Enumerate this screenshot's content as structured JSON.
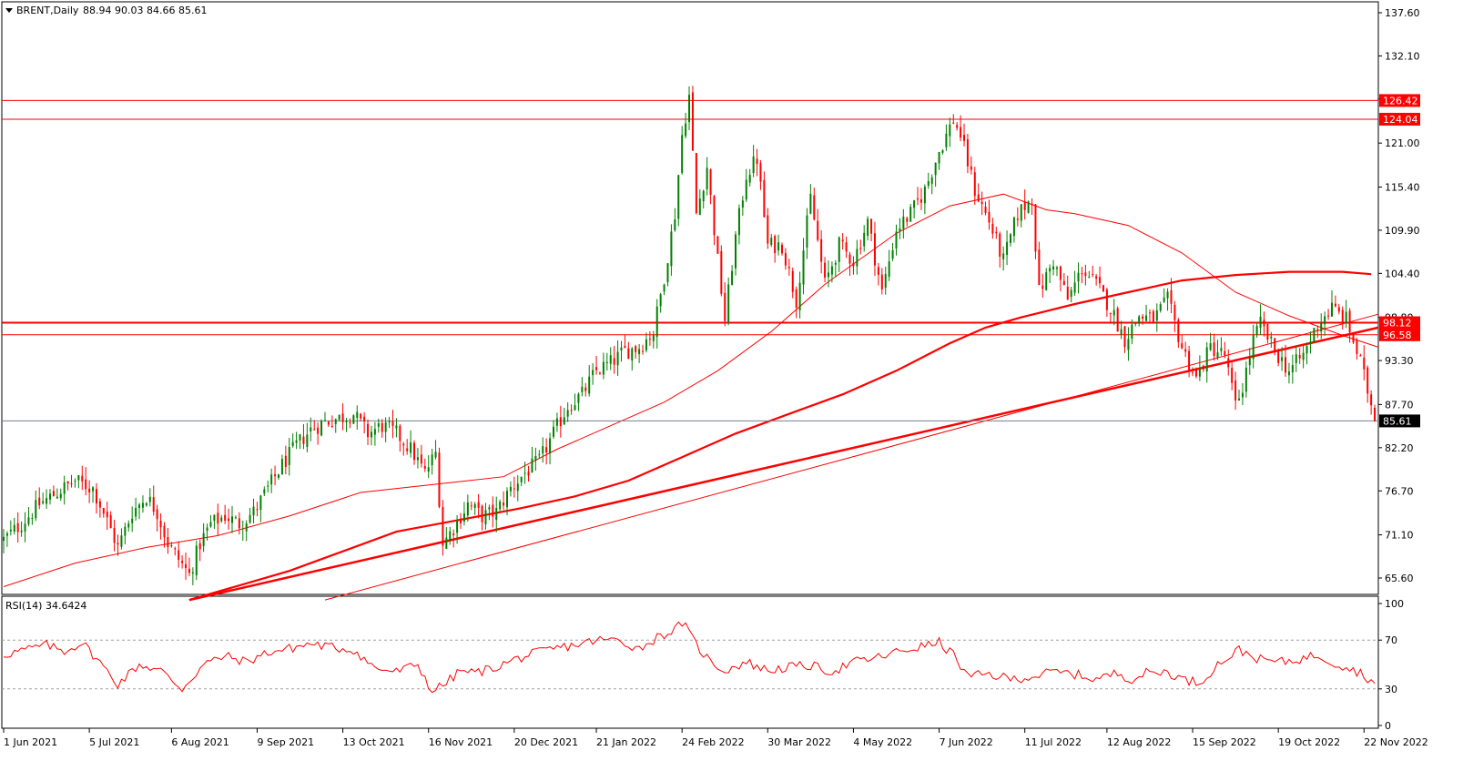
{
  "header": {
    "symbol": "BRENT,Daily",
    "ohlc": "88.94 90.03 84.66 85.61"
  },
  "rsi_header": {
    "label": "RSI(14) 34.6424"
  },
  "colors": {
    "bull": "#008000",
    "bear": "#ff0000",
    "lines": "#ff0000",
    "current_price_line": "#708090",
    "current_price_tag": "#000000",
    "rsi_line": "#ff0000"
  },
  "chart_data": {
    "type": "candlestick",
    "price_axis": {
      "ylim": [
        62.8,
        139.0
      ],
      "ticks": [
        "137.60",
        "132.10",
        "126.60",
        "121.00",
        "115.40",
        "109.90",
        "104.40",
        "98.80",
        "93.30",
        "87.70",
        "82.20",
        "76.70",
        "71.10",
        "65.60"
      ]
    },
    "rsi_axis": {
      "ylim": [
        0,
        100
      ],
      "ticks": [
        "100",
        "70",
        "30",
        "0"
      ],
      "levels": [
        70,
        30
      ]
    },
    "x_axis": {
      "labels": [
        {
          "text": "1 Jun 2021",
          "bar": 0
        },
        {
          "text": "5 Jul 2021",
          "bar": 24
        },
        {
          "text": "6 Aug 2021",
          "bar": 47
        },
        {
          "text": "9 Sep 2021",
          "bar": 71
        },
        {
          "text": "13 Oct 2021",
          "bar": 95
        },
        {
          "text": "16 Nov 2021",
          "bar": 119
        },
        {
          "text": "20 Dec 2021",
          "bar": 143
        },
        {
          "text": "21 Jan 2022",
          "bar": 166
        },
        {
          "text": "24 Feb 2022",
          "bar": 190
        },
        {
          "text": "30 Mar 2022",
          "bar": 214
        },
        {
          "text": "4 May 2022",
          "bar": 238
        },
        {
          "text": "7 Jun 2022",
          "bar": 262
        },
        {
          "text": "11 Jul 2022",
          "bar": 286
        },
        {
          "text": "12 Aug 2022",
          "bar": 309
        },
        {
          "text": "15 Sep 2022",
          "bar": 333
        },
        {
          "text": "19 Oct 2022",
          "bar": 357
        },
        {
          "text": "22 Nov 2022",
          "bar": 381
        }
      ]
    },
    "anchors": [
      [
        0,
        70.5
      ],
      [
        5,
        72.5
      ],
      [
        10,
        75
      ],
      [
        15,
        76.5
      ],
      [
        20,
        78
      ],
      [
        25,
        77
      ],
      [
        28,
        74
      ],
      [
        32,
        69.5
      ],
      [
        36,
        74
      ],
      [
        40,
        76
      ],
      [
        43,
        74
      ],
      [
        46,
        70
      ],
      [
        49,
        68
      ],
      [
        52,
        66
      ],
      [
        55,
        70
      ],
      [
        58,
        72.5
      ],
      [
        62,
        73.5
      ],
      [
        66,
        72.5
      ],
      [
        70,
        74
      ],
      [
        74,
        77
      ],
      [
        78,
        80
      ],
      [
        82,
        82.5
      ],
      [
        86,
        84.5
      ],
      [
        90,
        85.5
      ],
      [
        94,
        86
      ],
      [
        98,
        86.5
      ],
      [
        102,
        84
      ],
      [
        106,
        85
      ],
      [
        110,
        84
      ],
      [
        114,
        82
      ],
      [
        118,
        79
      ],
      [
        121,
        81.5
      ],
      [
        123,
        70
      ],
      [
        126,
        72
      ],
      [
        130,
        75
      ],
      [
        134,
        73.5
      ],
      [
        138,
        74
      ],
      [
        142,
        77
      ],
      [
        146,
        79
      ],
      [
        150,
        80.5
      ],
      [
        154,
        84
      ],
      [
        158,
        87.5
      ],
      [
        162,
        89
      ],
      [
        166,
        92
      ],
      [
        170,
        93
      ],
      [
        174,
        94.5
      ],
      [
        178,
        95
      ],
      [
        182,
        97
      ],
      [
        185,
        104
      ],
      [
        188,
        112
      ],
      [
        190,
        122
      ],
      [
        192,
        127
      ],
      [
        194,
        112
      ],
      [
        197,
        118
      ],
      [
        200,
        106
      ],
      [
        202,
        98.5
      ],
      [
        205,
        109
      ],
      [
        208,
        117
      ],
      [
        211,
        119
      ],
      [
        214,
        108
      ],
      [
        218,
        108
      ],
      [
        222,
        101
      ],
      [
        226,
        114
      ],
      [
        230,
        103
      ],
      [
        234,
        108
      ],
      [
        238,
        106
      ],
      [
        242,
        111
      ],
      [
        246,
        102
      ],
      [
        250,
        110
      ],
      [
        254,
        112
      ],
      [
        258,
        115
      ],
      [
        262,
        120
      ],
      [
        266,
        124
      ],
      [
        268,
        122
      ],
      [
        272,
        115
      ],
      [
        276,
        111
      ],
      [
        280,
        106
      ],
      [
        284,
        112
      ],
      [
        288,
        114
      ],
      [
        290,
        102
      ],
      [
        294,
        106
      ],
      [
        298,
        101
      ],
      [
        302,
        105
      ],
      [
        306,
        103
      ],
      [
        310,
        100
      ],
      [
        314,
        96
      ],
      [
        318,
        99
      ],
      [
        322,
        98.5
      ],
      [
        326,
        101
      ],
      [
        330,
        95
      ],
      [
        334,
        91
      ],
      [
        338,
        95
      ],
      [
        342,
        94
      ],
      [
        345,
        87.5
      ],
      [
        347,
        90
      ],
      [
        350,
        96
      ],
      [
        352,
        98
      ],
      [
        356,
        94.5
      ],
      [
        360,
        92
      ],
      [
        364,
        94
      ],
      [
        368,
        98
      ],
      [
        372,
        100
      ],
      [
        376,
        98.5
      ],
      [
        380,
        93
      ],
      [
        384,
        86
      ]
    ],
    "series_meta": {
      "bars": 385,
      "rsi_last": 34.6424,
      "last_close": 85.61
    },
    "rsi_anchors": [
      [
        0,
        58
      ],
      [
        6,
        62
      ],
      [
        12,
        66
      ],
      [
        17,
        61
      ],
      [
        22,
        68
      ],
      [
        26,
        55
      ],
      [
        32,
        34
      ],
      [
        38,
        50
      ],
      [
        44,
        45
      ],
      [
        50,
        30
      ],
      [
        56,
        50
      ],
      [
        62,
        57
      ],
      [
        68,
        52
      ],
      [
        74,
        60
      ],
      [
        80,
        63
      ],
      [
        86,
        67
      ],
      [
        92,
        64
      ],
      [
        98,
        62
      ],
      [
        104,
        47
      ],
      [
        110,
        44
      ],
      [
        116,
        50
      ],
      [
        120,
        28
      ],
      [
        124,
        35
      ],
      [
        128,
        45
      ],
      [
        132,
        43
      ],
      [
        138,
        48
      ],
      [
        144,
        55
      ],
      [
        150,
        60
      ],
      [
        156,
        64
      ],
      [
        162,
        67
      ],
      [
        166,
        70
      ],
      [
        172,
        70
      ],
      [
        178,
        63
      ],
      [
        184,
        74
      ],
      [
        188,
        78
      ],
      [
        190,
        85
      ],
      [
        194,
        66
      ],
      [
        198,
        52
      ],
      [
        202,
        45
      ],
      [
        208,
        52
      ],
      [
        214,
        45
      ],
      [
        220,
        48
      ],
      [
        226,
        49
      ],
      [
        232,
        44
      ],
      [
        238,
        52
      ],
      [
        244,
        55
      ],
      [
        250,
        60
      ],
      [
        256,
        64
      ],
      [
        262,
        68
      ],
      [
        266,
        58
      ],
      [
        270,
        40
      ],
      [
        276,
        42
      ],
      [
        282,
        38
      ],
      [
        288,
        40
      ],
      [
        294,
        44
      ],
      [
        300,
        42
      ],
      [
        306,
        38
      ],
      [
        312,
        43
      ],
      [
        316,
        38
      ],
      [
        320,
        43
      ],
      [
        326,
        44
      ],
      [
        330,
        38
      ],
      [
        335,
        35
      ],
      [
        340,
        50
      ],
      [
        346,
        62
      ],
      [
        352,
        54
      ],
      [
        358,
        52
      ],
      [
        364,
        55
      ],
      [
        368,
        58
      ],
      [
        372,
        52
      ],
      [
        376,
        48
      ],
      [
        380,
        43
      ],
      [
        384,
        35
      ]
    ],
    "horizontal_levels": [
      {
        "value": 126.42,
        "label": "126.42",
        "width": 1,
        "extend": "full"
      },
      {
        "value": 124.04,
        "label": "124.04",
        "width": 1,
        "extend": "full"
      },
      {
        "value": 98.12,
        "label": "98.12",
        "width": 2,
        "extend": "full"
      },
      {
        "value": 96.58,
        "label": "96.58",
        "width": 1,
        "extend": "full"
      }
    ],
    "current_price": {
      "value": 85.61,
      "label": "85.61"
    },
    "trendlines": [
      {
        "from": [
          52,
          62.8
        ],
        "to": [
          385,
          97.5
        ],
        "width": 2.5
      },
      {
        "from": [
          90,
          62.8
        ],
        "to": [
          385,
          99.2
        ],
        "width": 1
      }
    ],
    "moving_averages": [
      {
        "name": "thick",
        "width": 2.2,
        "points": [
          [
            52,
            62.8
          ],
          [
            80,
            66.5
          ],
          [
            110,
            71.5
          ],
          [
            130,
            73.2
          ],
          [
            145,
            74.5
          ],
          [
            160,
            76
          ],
          [
            175,
            78
          ],
          [
            190,
            81
          ],
          [
            205,
            84
          ],
          [
            220,
            86.5
          ],
          [
            235,
            89
          ],
          [
            250,
            92
          ],
          [
            265,
            95.5
          ],
          [
            275,
            97.5
          ],
          [
            285,
            98.8
          ],
          [
            300,
            100.5
          ],
          [
            315,
            102
          ],
          [
            330,
            103.5
          ],
          [
            345,
            104.2
          ],
          [
            360,
            104.6
          ],
          [
            375,
            104.6
          ],
          [
            383,
            104.3
          ]
        ]
      },
      {
        "name": "thin",
        "width": 1,
        "points": [
          [
            0,
            64.5
          ],
          [
            20,
            67.5
          ],
          [
            40,
            69.5
          ],
          [
            60,
            71
          ],
          [
            80,
            73.5
          ],
          [
            100,
            76.5
          ],
          [
            120,
            77.5
          ],
          [
            140,
            78.5
          ],
          [
            155,
            82
          ],
          [
            170,
            85
          ],
          [
            185,
            88
          ],
          [
            200,
            92
          ],
          [
            215,
            97
          ],
          [
            230,
            103
          ],
          [
            250,
            109.5
          ],
          [
            265,
            113
          ],
          [
            280,
            114.5
          ],
          [
            292,
            112.5
          ],
          [
            300,
            112
          ],
          [
            315,
            110.5
          ],
          [
            330,
            107
          ],
          [
            345,
            102
          ],
          [
            360,
            99
          ],
          [
            375,
            96.5
          ],
          [
            385,
            95
          ]
        ]
      }
    ]
  }
}
